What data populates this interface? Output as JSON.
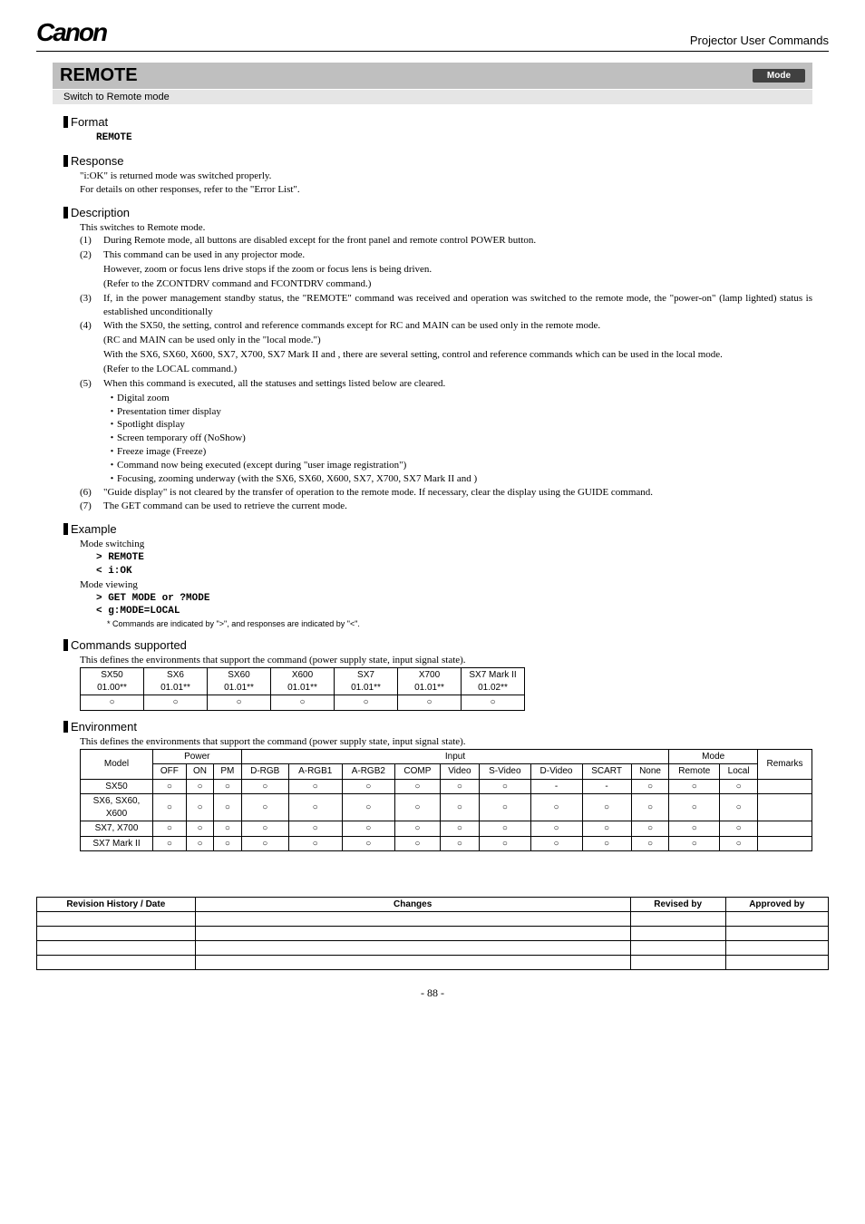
{
  "header": {
    "logo": "Canon",
    "right": "Projector User Commands"
  },
  "title": {
    "main": "REMOTE",
    "badge": "Mode",
    "subtitle": "Switch to Remote mode"
  },
  "format": {
    "heading": "Format",
    "body": "REMOTE"
  },
  "response": {
    "heading": "Response",
    "line1": "\"i:OK\" is returned mode was switched properly.",
    "line2": "For details on other responses, refer to the \"Error List\"."
  },
  "description": {
    "heading": "Description",
    "intro": "This switches to Remote mode.",
    "items": [
      {
        "n": "(1)",
        "t": "During Remote mode, all buttons are disabled except for the front panel and remote control POWER button."
      },
      {
        "n": "(2)",
        "t": "This command can be used in any projector mode.",
        "sub": [
          "However, zoom or focus lens drive stops if the zoom or focus lens is being driven.",
          "(Refer to the ZCONTDRV command and FCONTDRV command.)"
        ]
      },
      {
        "n": "(3)",
        "t": "If, in the power management standby status, the \"REMOTE\" command was received and operation was switched to the remote mode, the \"power-on\" (lamp lighted) status is established unconditionally"
      },
      {
        "n": "(4)",
        "t": "With the SX50, the setting, control and reference commands except for RC and MAIN can be used only in the remote mode.",
        "sub": [
          "(RC and MAIN can be used only in the \"local mode.\")",
          "With the SX6, SX60, X600, SX7, X700, SX7 Mark II  and , there are several setting, control and reference commands which can be used in the local mode.",
          "(Refer to the LOCAL command.)"
        ]
      },
      {
        "n": "(5)",
        "t": "When this command is executed, all the statuses and settings listed below are cleared.",
        "bullets": [
          "Digital zoom",
          "Presentation timer display",
          "Spotlight display",
          "Screen temporary off (NoShow)",
          "Freeze image (Freeze)",
          "Command now being executed (except during \"user image registration\")",
          "Focusing, zooming underway (with the SX6, SX60, X600, SX7, X700, SX7 Mark II and )"
        ]
      },
      {
        "n": "(6)",
        "t": "\"Guide display\" is not cleared by the transfer of operation to the remote mode. If necessary, clear the display using the GUIDE command."
      },
      {
        "n": "(7)",
        "t": "The GET command can be used to retrieve the current mode."
      }
    ]
  },
  "example": {
    "heading": "Example",
    "switching_label": "Mode switching",
    "switching_cmd": "> REMOTE",
    "switching_resp": "< i:OK",
    "viewing_label": "Mode viewing",
    "viewing_cmd": "> GET MODE or ?MODE",
    "viewing_resp": "< g:MODE=LOCAL",
    "footnote": "*  Commands are indicated by \">\", and responses are indicated by \"<\"."
  },
  "commands_supported": {
    "heading": "Commands supported",
    "intro": "This defines the environments that support the command (power supply state, input signal state).",
    "headers": [
      [
        "SX50",
        "01.00**"
      ],
      [
        "SX6",
        "01.01**"
      ],
      [
        "SX60",
        "01.01**"
      ],
      [
        "X600",
        "01.01**"
      ],
      [
        "SX7",
        "01.01**"
      ],
      [
        "X700",
        "01.01**"
      ],
      [
        "SX7 Mark II",
        "01.02**"
      ]
    ],
    "row": [
      "○",
      "○",
      "○",
      "○",
      "○",
      "○",
      "○"
    ]
  },
  "environment": {
    "heading": "Environment",
    "intro": "This defines the environments that support the command (power supply state, input signal state).",
    "group_headers": [
      "Model",
      "Power",
      "Input",
      "Mode",
      "Remarks"
    ],
    "sub_headers": [
      "OFF",
      "ON",
      "PM",
      "D-RGB",
      "A-RGB1",
      "A-RGB2",
      "COMP",
      "Video",
      "S-Video",
      "D-Video",
      "SCART",
      "None",
      "Remote",
      "Local"
    ],
    "rows": [
      {
        "model": "SX50",
        "cells": [
          "○",
          "○",
          "○",
          "○",
          "○",
          "○",
          "○",
          "○",
          "○",
          "-",
          "-",
          "○",
          "○",
          "○",
          ""
        ]
      },
      {
        "model": "SX6, SX60, X600",
        "cells": [
          "○",
          "○",
          "○",
          "○",
          "○",
          "○",
          "○",
          "○",
          "○",
          "○",
          "○",
          "○",
          "○",
          "○",
          ""
        ]
      },
      {
        "model": "SX7, X700",
        "cells": [
          "○",
          "○",
          "○",
          "○",
          "○",
          "○",
          "○",
          "○",
          "○",
          "○",
          "○",
          "○",
          "○",
          "○",
          ""
        ]
      },
      {
        "model": "SX7 Mark II",
        "cells": [
          "○",
          "○",
          "○",
          "○",
          "○",
          "○",
          "○",
          "○",
          "○",
          "○",
          "○",
          "○",
          "○",
          "○",
          ""
        ]
      }
    ]
  },
  "revision": {
    "headers": [
      "Revision History / Date",
      "Changes",
      "Revised by",
      "Approved by"
    ],
    "rows": [
      [
        "",
        "",
        "",
        ""
      ],
      [
        "",
        "",
        "",
        ""
      ],
      [
        "",
        "",
        "",
        ""
      ],
      [
        "",
        "",
        "",
        ""
      ]
    ]
  },
  "page_number": "- 88 -"
}
